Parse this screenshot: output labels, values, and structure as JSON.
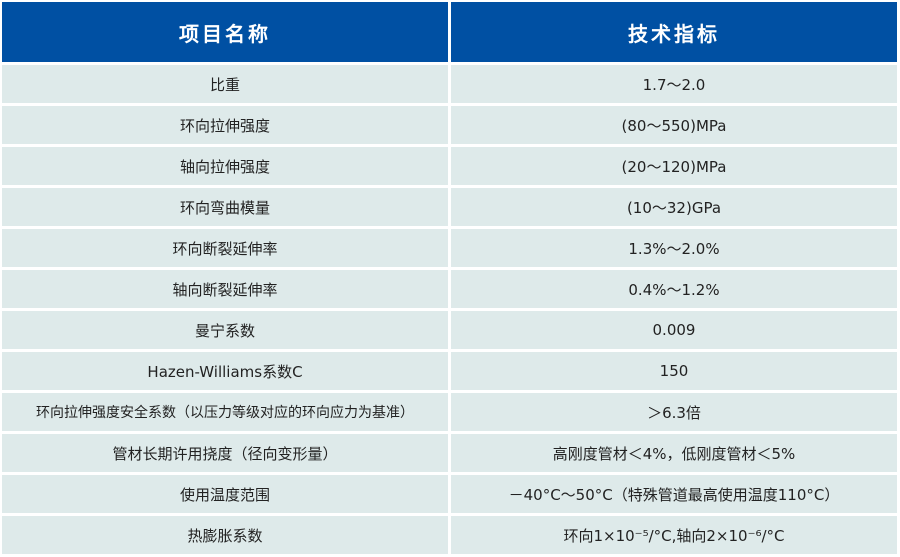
{
  "header": {
    "name": "项目名称",
    "spec": "技术指标"
  },
  "rows": [
    {
      "name": "比重",
      "value": "1.7～2.0"
    },
    {
      "name": "环向拉伸强度",
      "value": "(80～550)MPa"
    },
    {
      "name": "轴向拉伸强度",
      "value": "(20～120)MPa"
    },
    {
      "name": "环向弯曲模量",
      "value": "(10～32)GPa"
    },
    {
      "name": "环向断裂延伸率",
      "value": "1.3%～2.0%"
    },
    {
      "name": "轴向断裂延伸率",
      "value": "0.4%～1.2%"
    },
    {
      "name": "曼宁系数",
      "value": "0.009"
    },
    {
      "name": "Hazen-Williams系数C",
      "value": "150"
    },
    {
      "name": "环向拉伸强度安全系数（以压力等级对应的环向应力为基准）",
      "value": "＞6.3倍"
    },
    {
      "name": "管材长期许用挠度（径向变形量）",
      "value": "高刚度管材＜4%，低刚度管材＜5%"
    },
    {
      "name": "使用温度范围",
      "value": "－40°C～50°C（特殊管道最高使用温度110°C）"
    },
    {
      "name": "热膨胀系数",
      "value": "环向1×10⁻⁵/°C,轴向2×10⁻⁶/°C"
    }
  ]
}
